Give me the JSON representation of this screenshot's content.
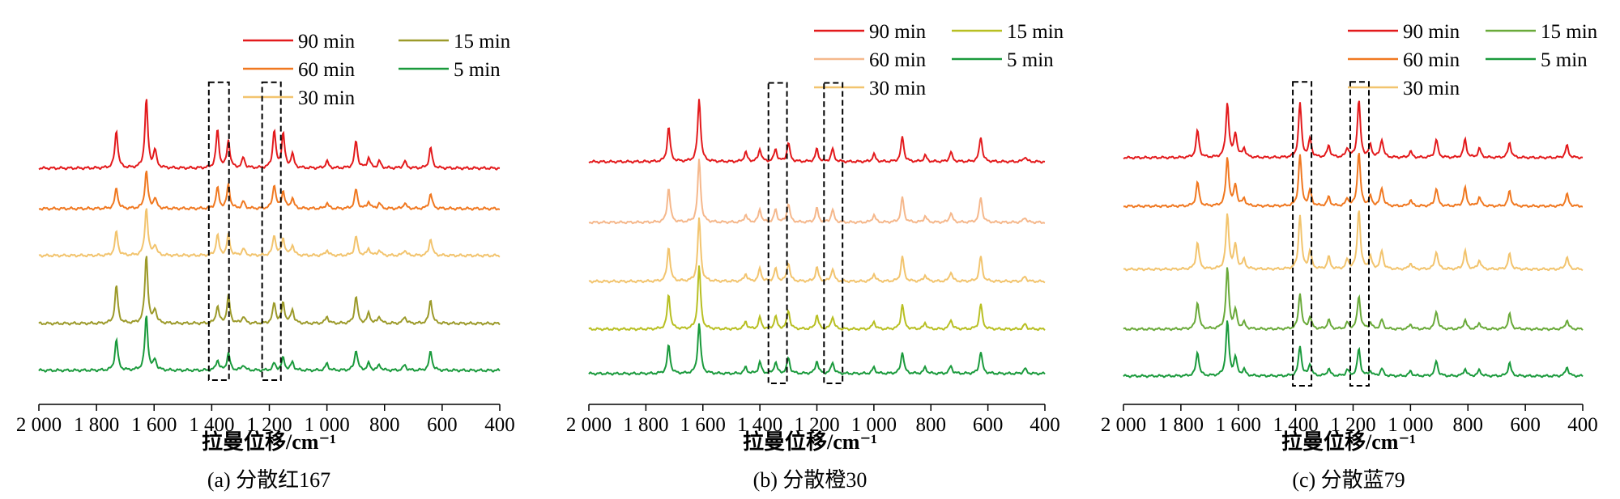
{
  "figure": {
    "axis_title": "拉曼位移/cm⁻¹"
  },
  "chart_data": [
    {
      "type": "line",
      "caption": "(a) 分散红167",
      "xlabel": "拉曼位移/cm⁻¹",
      "ylabel": "",
      "xlim": [
        2000,
        400
      ],
      "x_reversed": true,
      "x_ticks": [
        "2 000",
        "1 800",
        "1 600",
        "1 400",
        "1 200",
        "1 000",
        "800",
        "600",
        "400"
      ],
      "y_ticks": [],
      "grid": false,
      "legend_placement": "top",
      "series": [
        {
          "name": "90 min",
          "color": "#e31a1c"
        },
        {
          "name": "60 min",
          "color": "#f07820"
        },
        {
          "name": "30 min",
          "color": "#f2c46e"
        },
        {
          "name": "15 min",
          "color": "#9c9a2a"
        },
        {
          "name": "5 min",
          "color": "#1a9a3c"
        }
      ],
      "peaks": [
        {
          "x": 1731,
          "h": [
            0.55,
            0.3,
            0.35,
            0.55,
            0.45
          ]
        },
        {
          "x": 1627,
          "h": [
            1.0,
            0.55,
            0.7,
            1.0,
            0.8
          ]
        },
        {
          "x": 1597,
          "h": [
            0.25,
            0.15,
            0.15,
            0.2,
            0.15
          ]
        },
        {
          "x": 1380,
          "h": [
            0.55,
            0.3,
            0.3,
            0.25,
            0.15
          ]
        },
        {
          "x": 1342,
          "h": [
            0.4,
            0.35,
            0.3,
            0.4,
            0.25
          ]
        },
        {
          "x": 1290,
          "h": [
            0.15,
            0.1,
            0.1,
            0.1,
            0.08
          ]
        },
        {
          "x": 1183,
          "h": [
            0.55,
            0.35,
            0.3,
            0.3,
            0.1
          ]
        },
        {
          "x": 1152,
          "h": [
            0.5,
            0.25,
            0.25,
            0.3,
            0.18
          ]
        },
        {
          "x": 1120,
          "h": [
            0.2,
            0.15,
            0.15,
            0.2,
            0.12
          ]
        },
        {
          "x": 1000,
          "h": [
            0.1,
            0.08,
            0.08,
            0.1,
            0.1
          ]
        },
        {
          "x": 899,
          "h": [
            0.4,
            0.28,
            0.28,
            0.4,
            0.3
          ]
        },
        {
          "x": 855,
          "h": [
            0.15,
            0.1,
            0.1,
            0.15,
            0.1
          ]
        },
        {
          "x": 818,
          "h": [
            0.1,
            0.08,
            0.08,
            0.1,
            0.08
          ]
        },
        {
          "x": 730,
          "h": [
            0.1,
            0.08,
            0.08,
            0.1,
            0.08
          ]
        },
        {
          "x": 640,
          "h": [
            0.3,
            0.22,
            0.25,
            0.35,
            0.28
          ]
        }
      ],
      "annotations": [
        {
          "type": "dashed-box",
          "x": [
            1410,
            1340
          ]
        },
        {
          "type": "dashed-box",
          "x": [
            1225,
            1160
          ]
        }
      ]
    },
    {
      "type": "line",
      "caption": "(b) 分散橙30",
      "xlabel": "拉曼位移/cm⁻¹",
      "ylabel": "",
      "xlim": [
        2000,
        400
      ],
      "x_reversed": true,
      "x_ticks": [
        "2 000",
        "1 800",
        "1 600",
        "1 400",
        "1 200",
        "1 000",
        "800",
        "600",
        "400"
      ],
      "y_ticks": [],
      "grid": false,
      "legend_placement": "top",
      "series": [
        {
          "name": "90 min",
          "color": "#e31a1c"
        },
        {
          "name": "60 min",
          "color": "#f5b88c"
        },
        {
          "name": "30 min",
          "color": "#f2c46e"
        },
        {
          "name": "15 min",
          "color": "#b8bf22"
        },
        {
          "name": "5 min",
          "color": "#1a9a3c"
        }
      ],
      "peaks": [
        {
          "x": 1720,
          "h": [
            0.55,
            0.55,
            0.55,
            0.55,
            0.45
          ]
        },
        {
          "x": 1613,
          "h": [
            1.0,
            1.0,
            1.0,
            1.0,
            0.8
          ]
        },
        {
          "x": 1450,
          "h": [
            0.15,
            0.12,
            0.12,
            0.12,
            0.1
          ]
        },
        {
          "x": 1400,
          "h": [
            0.2,
            0.2,
            0.2,
            0.18,
            0.18
          ]
        },
        {
          "x": 1345,
          "h": [
            0.2,
            0.2,
            0.2,
            0.2,
            0.18
          ]
        },
        {
          "x": 1300,
          "h": [
            0.3,
            0.3,
            0.3,
            0.3,
            0.25
          ]
        },
        {
          "x": 1200,
          "h": [
            0.2,
            0.22,
            0.22,
            0.22,
            0.2
          ]
        },
        {
          "x": 1145,
          "h": [
            0.2,
            0.2,
            0.2,
            0.2,
            0.18
          ]
        },
        {
          "x": 1000,
          "h": [
            0.12,
            0.12,
            0.12,
            0.12,
            0.1
          ]
        },
        {
          "x": 900,
          "h": [
            0.4,
            0.4,
            0.4,
            0.4,
            0.35
          ]
        },
        {
          "x": 820,
          "h": [
            0.1,
            0.1,
            0.1,
            0.1,
            0.1
          ]
        },
        {
          "x": 730,
          "h": [
            0.15,
            0.15,
            0.15,
            0.15,
            0.12
          ]
        },
        {
          "x": 625,
          "h": [
            0.4,
            0.4,
            0.4,
            0.4,
            0.35
          ]
        },
        {
          "x": 470,
          "h": [
            0.08,
            0.08,
            0.08,
            0.08,
            0.08
          ]
        }
      ],
      "annotations": [
        {
          "type": "dashed-box",
          "x": [
            1370,
            1305
          ]
        },
        {
          "type": "dashed-box",
          "x": [
            1175,
            1110
          ]
        }
      ]
    },
    {
      "type": "line",
      "caption": "(c) 分散蓝79",
      "xlabel": "拉曼位移/cm⁻¹",
      "ylabel": "",
      "xlim": [
        2000,
        400
      ],
      "x_reversed": true,
      "x_ticks": [
        "2 000",
        "1 800",
        "1 600",
        "1 400",
        "1 200",
        "1 000",
        "800",
        "600",
        "400"
      ],
      "y_ticks": [],
      "grid": false,
      "legend_placement": "top",
      "series": [
        {
          "name": "90 min",
          "color": "#e31a1c"
        },
        {
          "name": "60 min",
          "color": "#f07820"
        },
        {
          "name": "30 min",
          "color": "#f2c46e"
        },
        {
          "name": "15 min",
          "color": "#6aaa3a"
        },
        {
          "name": "5 min",
          "color": "#1a9a3c"
        }
      ],
      "peaks": [
        {
          "x": 1742,
          "h": [
            0.45,
            0.4,
            0.45,
            0.45,
            0.4
          ]
        },
        {
          "x": 1638,
          "h": [
            0.9,
            0.8,
            0.9,
            1.0,
            0.9
          ]
        },
        {
          "x": 1610,
          "h": [
            0.4,
            0.35,
            0.4,
            0.3,
            0.3
          ]
        },
        {
          "x": 1580,
          "h": [
            0.15,
            0.12,
            0.15,
            0.1,
            0.1
          ]
        },
        {
          "x": 1385,
          "h": [
            0.9,
            0.85,
            0.9,
            0.6,
            0.5
          ]
        },
        {
          "x": 1350,
          "h": [
            0.3,
            0.25,
            0.3,
            0.2,
            0.2
          ]
        },
        {
          "x": 1285,
          "h": [
            0.2,
            0.15,
            0.2,
            0.15,
            0.12
          ]
        },
        {
          "x": 1220,
          "h": [
            0.15,
            0.12,
            0.15,
            0.1,
            0.1
          ]
        },
        {
          "x": 1180,
          "h": [
            0.95,
            0.9,
            1.0,
            0.55,
            0.45
          ]
        },
        {
          "x": 1140,
          "h": [
            0.2,
            0.15,
            0.2,
            0.1,
            0.08
          ]
        },
        {
          "x": 1100,
          "h": [
            0.3,
            0.3,
            0.3,
            0.15,
            0.12
          ]
        },
        {
          "x": 1000,
          "h": [
            0.1,
            0.1,
            0.1,
            0.08,
            0.08
          ]
        },
        {
          "x": 910,
          "h": [
            0.3,
            0.3,
            0.3,
            0.3,
            0.25
          ]
        },
        {
          "x": 810,
          "h": [
            0.3,
            0.3,
            0.3,
            0.15,
            0.12
          ]
        },
        {
          "x": 760,
          "h": [
            0.15,
            0.15,
            0.15,
            0.1,
            0.1
          ]
        },
        {
          "x": 655,
          "h": [
            0.25,
            0.25,
            0.25,
            0.25,
            0.22
          ]
        },
        {
          "x": 455,
          "h": [
            0.2,
            0.2,
            0.2,
            0.15,
            0.15
          ]
        }
      ],
      "annotations": [
        {
          "type": "dashed-box",
          "x": [
            1410,
            1345
          ]
        },
        {
          "type": "dashed-box",
          "x": [
            1210,
            1145
          ]
        }
      ]
    }
  ]
}
